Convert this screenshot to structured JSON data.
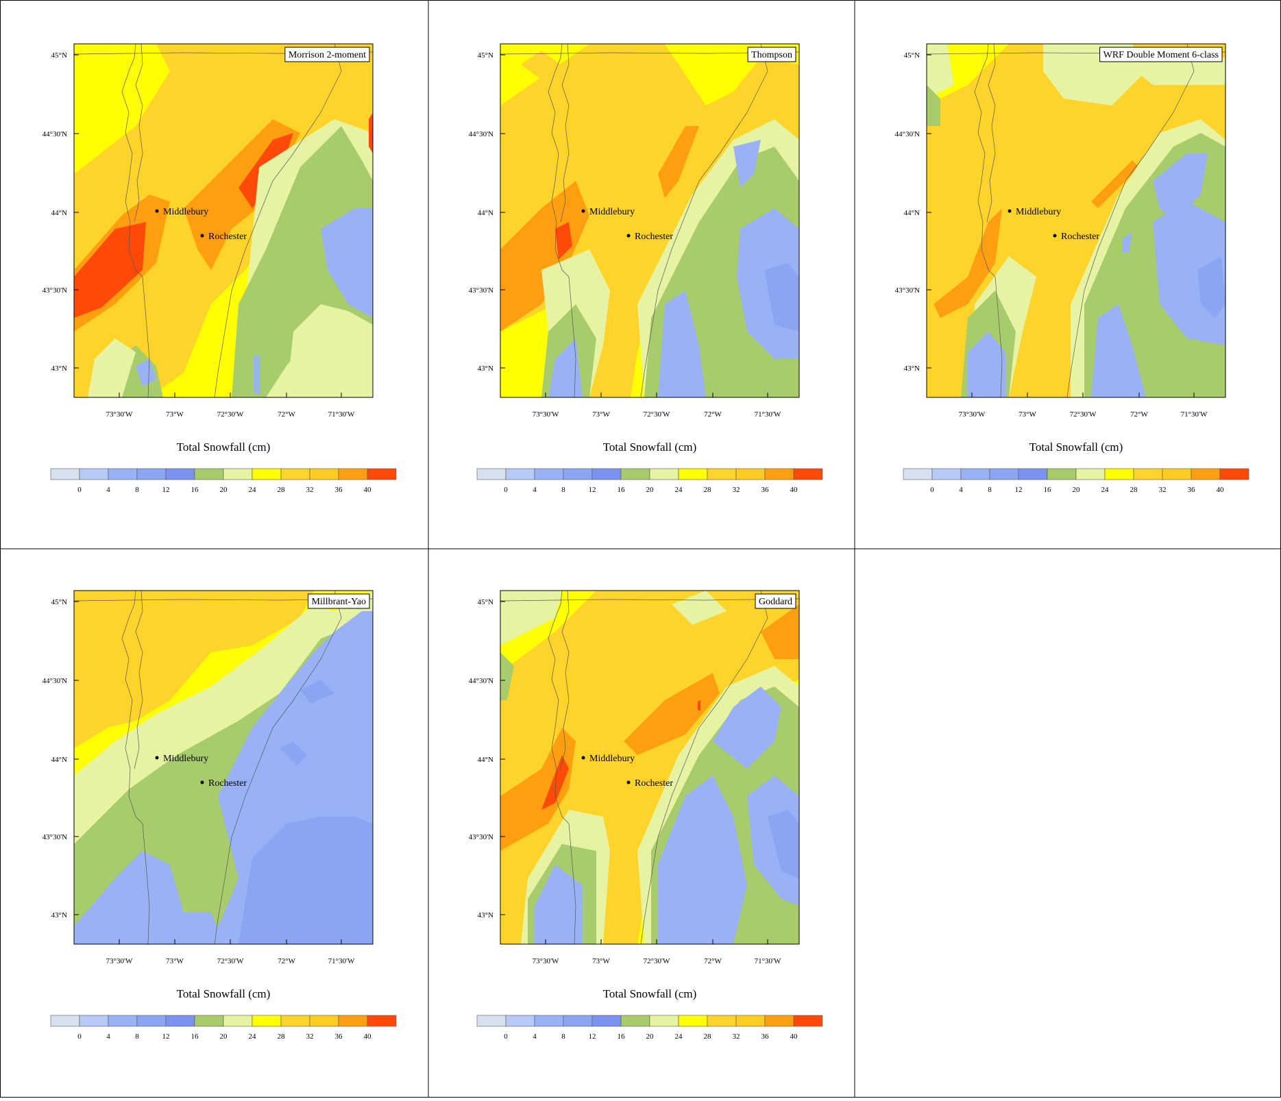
{
  "legend": {
    "title": "Total Snowfall  (cm)",
    "tick_labels": [
      "0",
      "4",
      "8",
      "12",
      "16",
      "20",
      "24",
      "28",
      "32",
      "36",
      "40"
    ],
    "colors": [
      "#d6e2ee",
      "#b6c9f7",
      "#98b2f5",
      "#8aa6f3",
      "#7b93ef",
      "#a8cc6c",
      "#e6f3a2",
      "#ffff00",
      "#ffd42a",
      "#ffcc22",
      "#ff9f10",
      "#ff4a0a"
    ]
  },
  "axes": {
    "lat_labels": [
      "45°N",
      "44°30'N",
      "44°N",
      "43°30'N",
      "43°N"
    ],
    "lon_labels": [
      "73°30'W",
      "73°W",
      "72°30'W",
      "72°W",
      "71°30'W"
    ]
  },
  "towns": [
    {
      "name": "Middlebury"
    },
    {
      "name": "Rochester"
    }
  ],
  "panels": [
    {
      "id": "morrison",
      "title": "Morrison 2-moment"
    },
    {
      "id": "thompson",
      "title": "Thompson"
    },
    {
      "id": "wdm6",
      "title": "WRF Double Moment 6-class"
    },
    {
      "id": "millbrant",
      "title": "Millbrant-Yao"
    },
    {
      "id": "goddard",
      "title": "Goddard"
    }
  ]
}
